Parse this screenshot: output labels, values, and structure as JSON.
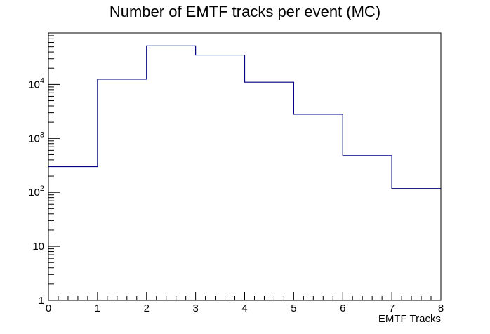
{
  "chart_data": {
    "type": "histogram",
    "title": "Number of EMTF tracks per event (MC)",
    "xlabel": "EMTF Tracks",
    "ylabel": "",
    "bin_edges": [
      0,
      1,
      2,
      3,
      4,
      5,
      6,
      7,
      8
    ],
    "values": [
      300,
      12500,
      52000,
      35000,
      11000,
      2800,
      480,
      118
    ],
    "xlim": [
      0,
      8
    ],
    "ylim": [
      1,
      90000
    ],
    "yscale": "log",
    "x_ticks": [
      "0",
      "1",
      "2",
      "3",
      "4",
      "5",
      "6",
      "7",
      "8"
    ],
    "y_ticks": [
      {
        "value": 1,
        "base": "1",
        "exp": ""
      },
      {
        "value": 10,
        "base": "10",
        "exp": ""
      },
      {
        "value": 100,
        "base": "10",
        "exp": "2"
      },
      {
        "value": 1000,
        "base": "10",
        "exp": "3"
      },
      {
        "value": 10000,
        "base": "10",
        "exp": "4"
      }
    ],
    "grid": false,
    "line_color": "#000080",
    "frame_color": "#000000"
  }
}
